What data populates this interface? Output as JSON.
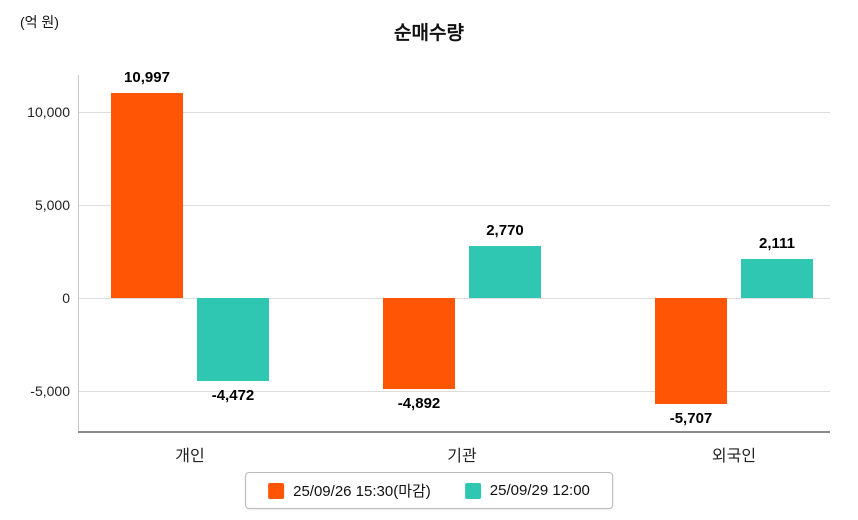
{
  "chart": {
    "title": "순매수량",
    "unit_label": "(억 원)"
  },
  "chart_data": {
    "type": "bar",
    "title": "순매수량",
    "ylabel": "(억 원)",
    "categories": [
      "개인",
      "기관",
      "외국인"
    ],
    "series": [
      {
        "name": "25/09/26 15:30(마감)",
        "color": "#FF5505",
        "values": [
          10997,
          -4892,
          -5707
        ],
        "value_labels": [
          "10,997",
          "-4,892",
          "-5,707"
        ]
      },
      {
        "name": "25/09/29 12:00",
        "color": "#2FC7B2",
        "values": [
          -4472,
          2770,
          2111
        ],
        "value_labels": [
          "-4,472",
          "2,770",
          "2,111"
        ]
      }
    ],
    "yticks": [
      10000,
      5000,
      0,
      -5000
    ],
    "ytick_labels": [
      "10,000",
      "5,000",
      "0",
      "-5,000"
    ],
    "ylim": [
      -7200,
      12000
    ],
    "grid": true,
    "legend_position": "bottom"
  }
}
